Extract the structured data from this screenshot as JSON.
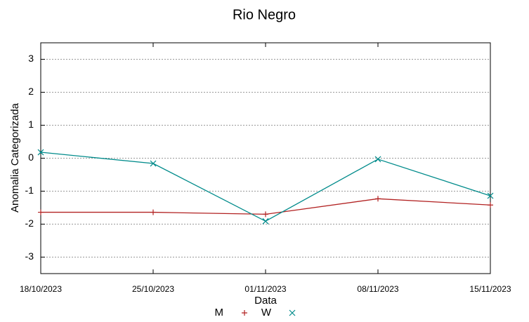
{
  "chart_data": {
    "type": "line",
    "title": "Rio Negro",
    "xlabel": "Data",
    "ylabel": "Anomalia Categorizada",
    "categories": [
      "18/10/2023",
      "25/10/2023",
      "01/11/2023",
      "08/11/2023",
      "15/11/2023"
    ],
    "series": [
      {
        "name": "M",
        "color": "#b22222",
        "marker": "+",
        "values": [
          -1.64,
          -1.64,
          -1.7,
          -1.23,
          -1.42
        ]
      },
      {
        "name": "W",
        "color": "#008b8b",
        "marker": "x",
        "values": [
          0.18,
          -0.16,
          -1.91,
          -0.03,
          -1.14
        ]
      }
    ],
    "ylim": [
      -3.5,
      3.5
    ],
    "yticks": [
      -3,
      -2,
      -1,
      0,
      1,
      2,
      3
    ],
    "grid": true
  }
}
